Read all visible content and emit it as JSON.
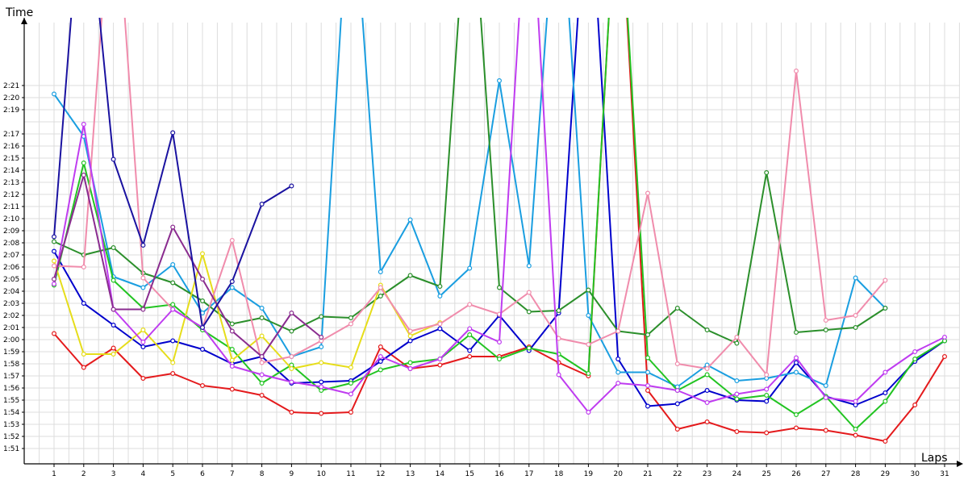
{
  "chart_data": {
    "type": "line",
    "xlabel": "Laps",
    "ylabel": "Time",
    "x": [
      1,
      2,
      3,
      4,
      5,
      6,
      7,
      8,
      9,
      10,
      11,
      12,
      13,
      14,
      15,
      16,
      17,
      18,
      19,
      20,
      21,
      22,
      23,
      24,
      25,
      26,
      27,
      28,
      29,
      30,
      31
    ],
    "y_ticks": [
      "1:51",
      "1:52",
      "1:53",
      "1:54",
      "1:55",
      "1:56",
      "1:57",
      "1:58",
      "1:59",
      "2:00",
      "2:01",
      "2:02",
      "2:03",
      "2:04",
      "2:05",
      "2:06",
      "2:07",
      "2:08",
      "2:09",
      "2:10",
      "2:11",
      "2:12",
      "2:13",
      "2:14",
      "2:15",
      "2:16",
      "2:17",
      "2:19",
      "2:20",
      "2:21"
    ],
    "ylim_seconds": [
      110,
      143
    ],
    "grid": true,
    "series": [
      {
        "color": "#e41a1c",
        "values": [
          120.5,
          117.7,
          119.3,
          116.8,
          117.2,
          116.2,
          115.9,
          115.4,
          114.0,
          113.9,
          114.0,
          119.4,
          117.6,
          117.9,
          118.6,
          118.6,
          119.4,
          118.1,
          117.0,
          160,
          115.8,
          112.6,
          113.2,
          112.4,
          112.3,
          112.7,
          112.5,
          112.1,
          111.6,
          114.6,
          118.6
        ]
      },
      {
        "color": "#0000cc",
        "values": [
          127.3,
          123.0,
          121.2,
          119.4,
          119.9,
          119.2,
          118.0,
          118.6,
          116.4,
          116.5,
          116.6,
          118.2,
          119.9,
          120.9,
          119.1,
          122.0,
          119.1,
          122.2,
          160,
          118.4,
          114.5,
          114.7,
          115.8,
          115.0,
          114.9,
          118.1,
          115.3,
          114.6,
          115.6,
          118.2,
          119.9
        ]
      },
      {
        "color": "#1a9ee0",
        "values": [
          140.3,
          136.8,
          125.2,
          124.3,
          126.2,
          122.2,
          124.3,
          122.6,
          118.6,
          119.4,
          160,
          125.6,
          129.9,
          123.6,
          125.9,
          141.4,
          126.1,
          160,
          122.0,
          117.3,
          117.3,
          116.1,
          117.9,
          116.6,
          116.8,
          117.3,
          116.2,
          125.1,
          122.6,
          null,
          null
        ]
      },
      {
        "color": "#22c422",
        "values": [
          124.5,
          134.6,
          124.9,
          122.6,
          122.9,
          120.8,
          119.2,
          116.4,
          117.9,
          115.8,
          116.4,
          117.5,
          118.1,
          118.4,
          120.4,
          118.4,
          119.3,
          118.8,
          117.2,
          160,
          118.5,
          115.8,
          117.1,
          115.1,
          115.4,
          113.8,
          115.3,
          112.6,
          114.9,
          118.4,
          119.9
        ]
      },
      {
        "color": "#2b8f2b",
        "values": [
          128.1,
          127.0,
          127.6,
          125.5,
          124.7,
          123.2,
          121.3,
          121.8,
          120.7,
          121.9,
          121.8,
          123.6,
          125.3,
          124.4,
          160,
          124.3,
          122.3,
          122.4,
          124.1,
          120.7,
          120.4,
          122.6,
          120.8,
          119.7,
          133.8,
          120.6,
          120.8,
          121.0,
          122.6,
          null,
          null
        ]
      },
      {
        "color": "#e6dd1a",
        "values": [
          126.5,
          118.8,
          118.8,
          120.8,
          118.1,
          127.1,
          118.3,
          120.3,
          117.6,
          118.1,
          117.7,
          124.5,
          120.3,
          121.4,
          null,
          null,
          null,
          null,
          null,
          null,
          null,
          null,
          null,
          null,
          null,
          null,
          null,
          null,
          null,
          null,
          null
        ]
      },
      {
        "color": "#f08cac",
        "values": [
          126.1,
          126.0,
          160,
          125.1,
          122.5,
          121.0,
          128.2,
          118.1,
          118.6,
          119.9,
          121.3,
          124.3,
          120.7,
          121.3,
          122.9,
          122.1,
          123.9,
          120.1,
          119.6,
          120.7,
          132.1,
          118.0,
          117.6,
          120.2,
          117.1,
          142.2,
          121.6,
          122.0,
          124.9,
          null,
          null
        ]
      },
      {
        "color": "#bf3cf0",
        "values": [
          124.6,
          137.8,
          122.5,
          119.8,
          122.5,
          121.0,
          117.8,
          117.1,
          116.5,
          116.1,
          115.5,
          118.6,
          117.6,
          118.4,
          120.9,
          119.8,
          160,
          117.1,
          114.0,
          116.4,
          116.2,
          115.8,
          114.8,
          115.5,
          115.9,
          118.5,
          115.2,
          114.9,
          117.3,
          119.0,
          120.2
        ]
      },
      {
        "color": "#8a2c8f",
        "values": [
          125.0,
          133.6,
          122.5,
          122.5,
          129.3,
          125.0,
          120.7,
          118.6,
          122.2,
          120.2,
          null,
          null,
          null,
          null,
          null,
          null,
          null,
          null,
          null,
          null,
          null,
          null,
          null,
          null,
          null,
          null,
          null,
          null,
          null,
          null,
          null
        ]
      },
      {
        "color": "#1a12a0",
        "values": [
          128.5,
          160,
          134.9,
          127.8,
          137.1,
          121.0,
          124.8,
          131.2,
          132.7,
          null,
          null,
          null,
          null,
          null,
          null,
          null,
          null,
          null,
          null,
          null,
          null,
          null,
          null,
          null,
          null,
          null,
          null,
          null,
          null,
          null,
          null
        ]
      }
    ]
  }
}
